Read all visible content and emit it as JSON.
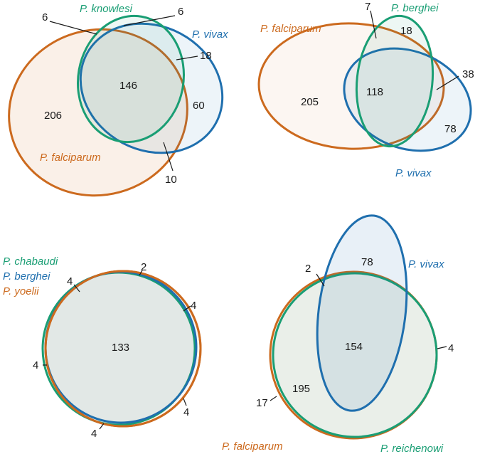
{
  "colors": {
    "orange": "#CC6A1E",
    "green": "#1A9E74",
    "blue": "#1F6FAE",
    "text": "#1a1a1a"
  },
  "panels": [
    {
      "id": "top-left",
      "species": [
        {
          "name": "P. knowlesi",
          "color": "#1A9E74"
        },
        {
          "name": "P. vivax",
          "color": "#1F6FAE"
        },
        {
          "name": "P. falciparum",
          "color": "#CC6A1E"
        }
      ],
      "counts": [
        "6",
        "6",
        "18",
        "146",
        "206",
        "60",
        "10"
      ]
    },
    {
      "id": "top-right",
      "species": [
        {
          "name": "P. falciparum",
          "color": "#CC6A1E"
        },
        {
          "name": "P. berghei",
          "color": "#1A9E74"
        },
        {
          "name": "P. vivax",
          "color": "#1F6FAE"
        }
      ],
      "counts": [
        "7",
        "18",
        "38",
        "118",
        "205",
        "78"
      ]
    },
    {
      "id": "bottom-left",
      "species": [
        {
          "name": "P. chabaudi",
          "color": "#1A9E74"
        },
        {
          "name": "P. berghei",
          "color": "#1F6FAE"
        },
        {
          "name": "P. yoelii",
          "color": "#CC6A1E"
        }
      ],
      "counts": [
        "2",
        "4",
        "4",
        "133",
        "4",
        "4",
        "4"
      ]
    },
    {
      "id": "bottom-right",
      "species": [
        {
          "name": "P. vivax",
          "color": "#1F6FAE"
        },
        {
          "name": "P. falciparum",
          "color": "#CC6A1E"
        },
        {
          "name": "P. reichenowi",
          "color": "#1A9E74"
        }
      ],
      "counts": [
        "78",
        "2",
        "154",
        "4",
        "195",
        "17"
      ]
    }
  ]
}
